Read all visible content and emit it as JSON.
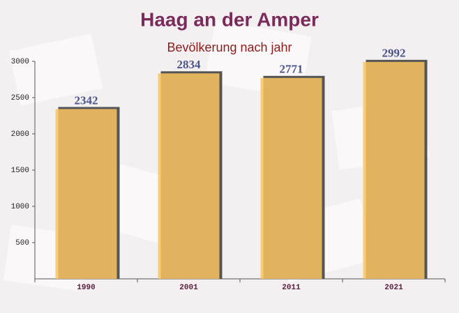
{
  "chart_data": {
    "type": "bar",
    "title": "Haag an der Amper",
    "subtitle": "Bevölkerung nach jahr",
    "categories": [
      "1990",
      "2001",
      "2011",
      "2021"
    ],
    "values": [
      2342,
      2834,
      2771,
      2992
    ],
    "color": "#fcc461",
    "ylim": [
      0,
      3000
    ],
    "yticks": [
      500,
      1000,
      1500,
      2000,
      2500,
      3000
    ]
  }
}
